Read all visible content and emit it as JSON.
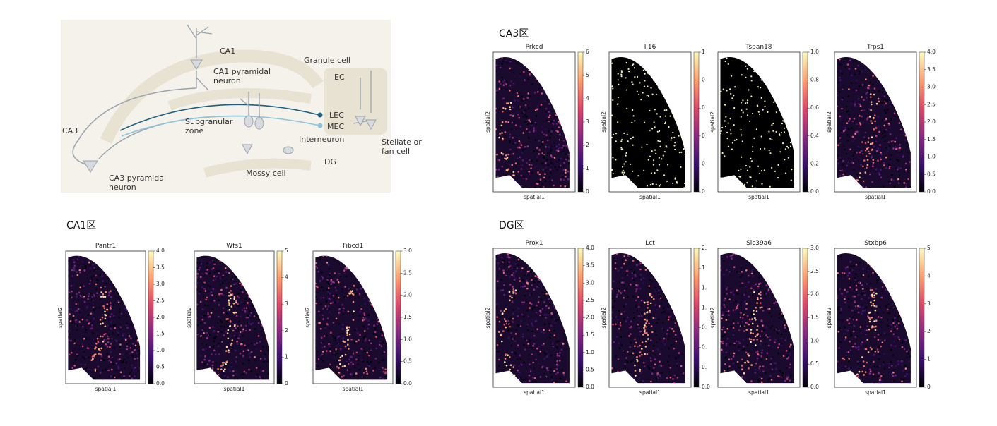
{
  "diagram": {
    "labels": {
      "ca1": [
        "CA1"
      ],
      "ca1_pyramidal": [
        "CA1 pyramidal",
        "neuron"
      ],
      "granule": [
        "Granule cell"
      ],
      "ec": [
        "EC"
      ],
      "lec": [
        "LEC"
      ],
      "mec": [
        "MEC"
      ],
      "ca3": [
        "CA3"
      ],
      "subgranular": [
        "Subgranular",
        "zone"
      ],
      "interneuron": [
        "Interneuron"
      ],
      "stellate": [
        "Stellate or",
        "fan cell"
      ],
      "mossy": [
        "Mossy cell"
      ],
      "dg": [
        "DG"
      ],
      "ca3_pyramidal": [
        "CA3 pyramidal",
        "neuron"
      ]
    }
  },
  "panels": [
    {
      "title": "CA3区",
      "plots": [
        {
          "title": "Prkcd",
          "xlabel": "spatial1",
          "ylabel": "spatial2",
          "colorbar_ticks": [
            "0",
            "1",
            "2",
            "3",
            "4",
            "5",
            "6"
          ]
        },
        {
          "title": "Il16",
          "xlabel": "spatial1",
          "ylabel": "spatial2",
          "colorbar_ticks": [
            "0",
            "0",
            "0",
            "0",
            "0",
            "1"
          ]
        },
        {
          "title": "Tspan18",
          "xlabel": "spatial1",
          "ylabel": "spatial2",
          "colorbar_ticks": [
            "0.0",
            "0.2",
            "0.4",
            "0.6",
            "0.8",
            "1.0"
          ]
        },
        {
          "title": "Trps1",
          "xlabel": "spatial1",
          "ylabel": "spatial2",
          "colorbar_ticks": [
            "0.0",
            "0.5",
            "1.0",
            "1.5",
            "2.0",
            "2.5",
            "3.0",
            "3.5",
            "4.0"
          ]
        }
      ]
    },
    {
      "title": "CA1区",
      "plots": [
        {
          "title": "Pantr1",
          "xlabel": "spatial1",
          "ylabel": "spatial2",
          "colorbar_ticks": [
            "0.0",
            "0.5",
            "1.0",
            "1.5",
            "2.0",
            "2.5",
            "3.0",
            "3.5",
            "4.0"
          ]
        },
        {
          "title": "Wfs1",
          "xlabel": "spatial1",
          "ylabel": "spatial2",
          "colorbar_ticks": [
            "0",
            "1",
            "2",
            "3",
            "4",
            "5"
          ]
        },
        {
          "title": "Fibcd1",
          "xlabel": "spatial1",
          "ylabel": "spatial2",
          "colorbar_ticks": [
            "0.0",
            "0.5",
            "1.0",
            "1.5",
            "2.0",
            "2.5",
            "3.0"
          ]
        }
      ]
    },
    {
      "title": "DG区",
      "plots": [
        {
          "title": "Prox1",
          "xlabel": "spatial1",
          "ylabel": "spatial2",
          "colorbar_ticks": [
            "0.0",
            "0.5",
            "1.0",
            "1.5",
            "2.0",
            "2.5",
            "3.0",
            "3.5",
            "4.0"
          ]
        },
        {
          "title": "Lct",
          "xlabel": "spatial1",
          "ylabel": "spatial2",
          "colorbar_ticks": [
            "0.0",
            "0.",
            "0.",
            "0.",
            "1.",
            "1.",
            "1.",
            "2."
          ]
        },
        {
          "title": "Slc39a6",
          "xlabel": "spatial1",
          "ylabel": "spatial2",
          "colorbar_ticks": [
            "0.0",
            "0.5",
            "1.0",
            "1.5",
            "2.0",
            "2.5",
            "3.0"
          ]
        },
        {
          "title": "Stxbp6",
          "xlabel": "spatial1",
          "ylabel": "spatial2",
          "colorbar_ticks": [
            "0",
            "1",
            "2",
            "3",
            "4",
            "5"
          ]
        }
      ]
    }
  ]
}
